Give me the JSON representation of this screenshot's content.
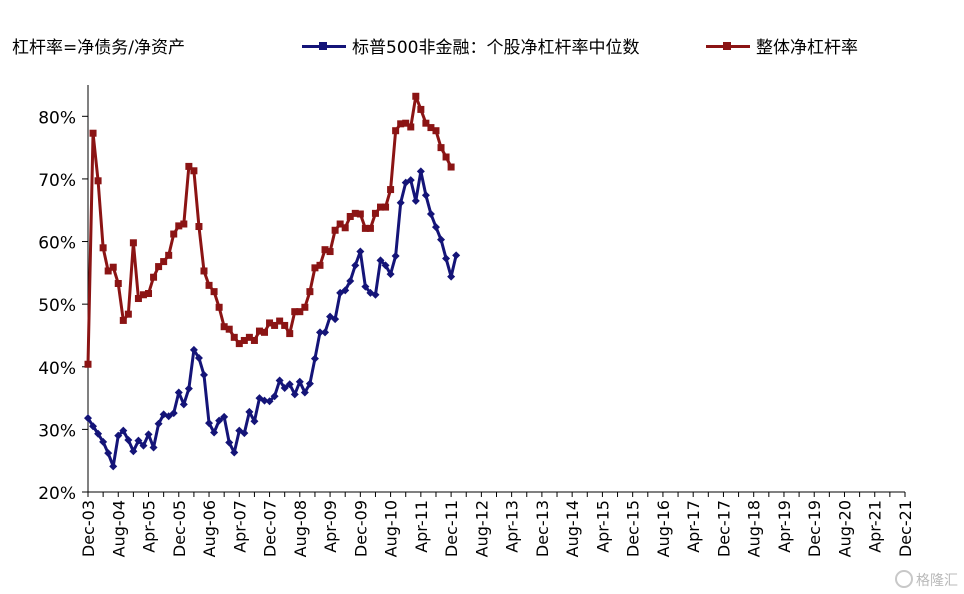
{
  "watermark": "格隆汇",
  "chart_data": {
    "type": "line",
    "note": "杠杆率=净债务/净资产",
    "ylim": [
      0.2,
      0.85
    ],
    "yticks": [
      0.2,
      0.3,
      0.4,
      0.5,
      0.6,
      0.7,
      0.8
    ],
    "ytick_labels": [
      "20%",
      "30%",
      "40%",
      "50%",
      "60%",
      "70%",
      "80%"
    ],
    "x_tick_labels": [
      "Dec-03",
      "Aug-04",
      "Apr-05",
      "Dec-05",
      "Aug-06",
      "Apr-07",
      "Dec-07",
      "Aug-08",
      "Apr-09",
      "Dec-09",
      "Aug-10",
      "Apr-11",
      "Dec-11",
      "Aug-12",
      "Apr-13",
      "Dec-13",
      "Aug-14",
      "Apr-15",
      "Dec-15",
      "Aug-16",
      "Apr-17",
      "Dec-17",
      "Aug-18",
      "Apr-19",
      "Dec-19",
      "Aug-20",
      "Apr-21",
      "Dec-21"
    ],
    "x_tick_index": [
      0,
      2,
      4,
      6,
      8,
      10,
      12,
      14,
      16,
      18,
      20,
      22,
      24,
      26,
      28,
      30,
      32,
      34,
      36,
      38,
      40,
      42,
      44,
      46,
      48,
      50,
      52,
      54
    ],
    "points_per_tick": 3,
    "series": [
      {
        "name": "标普500非金融：个股净杠杆率中位数",
        "color": "#141478",
        "marker": "diamond",
        "values": [
          0.318,
          0.305,
          0.293,
          0.28,
          0.262,
          0.241,
          0.29,
          0.298,
          0.283,
          0.265,
          0.282,
          0.274,
          0.292,
          0.271,
          0.309,
          0.324,
          0.321,
          0.326,
          0.359,
          0.34,
          0.365,
          0.427,
          0.414,
          0.387,
          0.31,
          0.295,
          0.314,
          0.32,
          0.279,
          0.263,
          0.298,
          0.294,
          0.328,
          0.313,
          0.35,
          0.346,
          0.345,
          0.353,
          0.378,
          0.366,
          0.372,
          0.356,
          0.376,
          0.359,
          0.373,
          0.413,
          0.455,
          0.455,
          0.48,
          0.476,
          0.518,
          0.522,
          0.537,
          0.562,
          0.584,
          0.528,
          0.518,
          0.515,
          0.57,
          0.562,
          0.548,
          0.577,
          0.662,
          0.694,
          0.698,
          0.665,
          0.712,
          0.674,
          0.644,
          0.623,
          0.603,
          0.573,
          0.544,
          0.578
        ]
      },
      {
        "name": "整体净杠杆率",
        "color": "#8b1414",
        "marker": "square",
        "values": [
          0.404,
          0.773,
          0.697,
          0.59,
          0.553,
          0.559,
          0.533,
          0.474,
          0.484,
          0.598,
          0.509,
          0.515,
          0.517,
          0.543,
          0.56,
          0.568,
          0.578,
          0.612,
          0.625,
          0.628,
          0.72,
          0.713,
          0.624,
          0.553,
          0.53,
          0.52,
          0.495,
          0.464,
          0.46,
          0.447,
          0.437,
          0.442,
          0.447,
          0.442,
          0.457,
          0.455,
          0.47,
          0.466,
          0.473,
          0.466,
          0.453,
          0.488,
          0.488,
          0.495,
          0.52,
          0.558,
          0.562,
          0.587,
          0.584,
          0.618,
          0.628,
          0.622,
          0.64,
          0.645,
          0.644,
          0.621,
          0.621,
          0.645,
          0.655,
          0.655,
          0.683,
          0.777,
          0.788,
          0.789,
          0.783,
          0.832,
          0.811,
          0.789,
          0.782,
          0.777,
          0.75,
          0.735,
          0.719
        ]
      }
    ]
  }
}
